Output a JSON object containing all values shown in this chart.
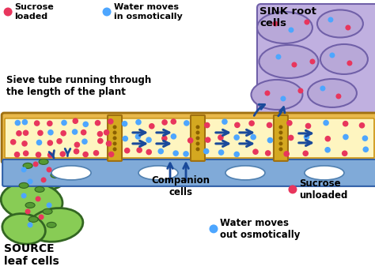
{
  "sucrose_color": "#e8365d",
  "water_color": "#4da6ff",
  "sieve_fill": "#fef5c0",
  "sieve_border": "#c8900a",
  "sieve_outer_fill": "#f0c060",
  "companion_fill": "#7ab8e8",
  "companion_border": "#2060a0",
  "sink_fill": "#b8a8d8",
  "sink_border": "#7060a8",
  "source_fill": "#88cc55",
  "source_border": "#336622",
  "xylem_fill": "#6699cc",
  "xylem_border": "#2255aa",
  "arrow_color": "#1a4a9a",
  "text_color": "#000000",
  "bg_color": "#ffffff",
  "labels": {
    "sucrose_loaded": "Sucrose\nloaded",
    "water_in": "Water moves\nin osmotically",
    "sink": "SINK root\ncells",
    "sieve_tube": "Sieve tube running through\nthe length of the plant",
    "companion": "Companion\ncells",
    "sucrose_unloaded": "Sucrose\nunloaded",
    "source": "SOURCE\nleaf cells",
    "water_out": "Water moves\nout osmotically"
  }
}
